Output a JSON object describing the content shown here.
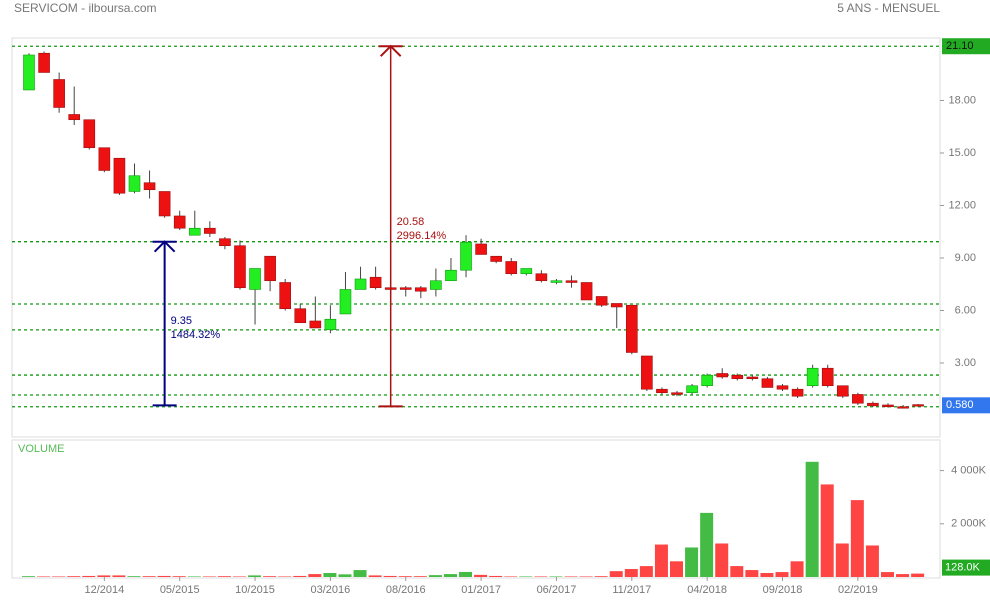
{
  "chart_data": {
    "type": "candlestick",
    "title": "SERVICOM - ilboursa.com",
    "subtitle": "5 ANS - MENSUEL",
    "categories": [
      null,
      null,
      null,
      null,
      null,
      "12/2014",
      null,
      null,
      null,
      null,
      "05/2015",
      null,
      null,
      null,
      null,
      "10/2015",
      null,
      null,
      null,
      null,
      "03/2016",
      null,
      null,
      null,
      null,
      "08/2016",
      null,
      null,
      null,
      null,
      "01/2017",
      null,
      null,
      null,
      null,
      "06/2017",
      null,
      null,
      null,
      null,
      "11/2017",
      null,
      null,
      null,
      null,
      "04/2018",
      null,
      null,
      null,
      null,
      "09/2018",
      null,
      null,
      null,
      null,
      "02/2019",
      null,
      null,
      null,
      null
    ],
    "open": [
      18.6,
      20.7,
      19.2,
      17.2,
      16.9,
      15.3,
      14.7,
      12.8,
      13.3,
      12.8,
      11.4,
      10.3,
      10.7,
      10.1,
      9.7,
      7.2,
      9.1,
      7.6,
      6.1,
      5.4,
      4.9,
      5.8,
      7.2,
      7.9,
      7.3,
      7.3,
      7.3,
      7.2,
      7.7,
      8.3,
      9.8,
      9.1,
      8.8,
      8.1,
      8.1,
      7.6,
      7.7,
      7.6,
      6.8,
      6.4,
      6.3,
      3.4,
      1.5,
      1.3,
      1.3,
      1.7,
      2.4,
      2.3,
      2.2,
      2.1,
      1.7,
      1.5,
      1.7,
      2.7,
      1.7,
      1.2,
      0.7,
      0.6,
      0.5,
      0.62
    ],
    "high": [
      20.7,
      20.8,
      19.6,
      18.8,
      16.9,
      15.3,
      14.7,
      14.4,
      14.0,
      12.8,
      11.7,
      11.7,
      11.1,
      10.2,
      10.0,
      8.4,
      9.1,
      7.8,
      6.4,
      6.8,
      6.3,
      8.2,
      8.5,
      8.5,
      7.4,
      7.4,
      7.4,
      8.4,
      9.0,
      10.3,
      10.1,
      9.1,
      9.0,
      8.4,
      8.3,
      7.8,
      8.0,
      7.6,
      6.8,
      6.4,
      6.3,
      3.4,
      1.6,
      1.4,
      1.8,
      2.4,
      2.7,
      2.4,
      2.3,
      2.2,
      1.8,
      1.6,
      2.9,
      2.9,
      1.7,
      1.3,
      0.8,
      0.7,
      0.6,
      0.65
    ],
    "low": [
      18.6,
      19.6,
      17.3,
      16.6,
      15.2,
      13.9,
      12.6,
      12.7,
      12.4,
      11.3,
      10.6,
      10.3,
      10.2,
      9.5,
      7.2,
      5.2,
      7.1,
      6.0,
      5.3,
      5.0,
      4.7,
      5.8,
      7.2,
      7.2,
      6.8,
      6.8,
      6.7,
      6.8,
      7.7,
      7.9,
      9.2,
      8.7,
      8.0,
      8.0,
      7.6,
      7.5,
      7.3,
      6.6,
      6.2,
      5.0,
      3.5,
      1.4,
      1.2,
      1.1,
      1.2,
      1.6,
      2.1,
      2.0,
      2.0,
      1.6,
      1.4,
      1.0,
      1.6,
      1.6,
      1.0,
      0.6,
      0.5,
      0.45,
      0.4,
      0.5
    ],
    "close": [
      20.6,
      19.6,
      17.6,
      16.9,
      15.3,
      14.0,
      12.7,
      13.7,
      12.9,
      11.4,
      10.7,
      10.7,
      10.4,
      9.7,
      7.3,
      8.4,
      7.7,
      6.1,
      5.3,
      5.0,
      5.5,
      7.2,
      7.8,
      7.3,
      7.2,
      7.2,
      7.1,
      7.7,
      8.3,
      9.9,
      9.2,
      8.8,
      8.1,
      8.4,
      7.7,
      7.7,
      7.6,
      6.6,
      6.3,
      6.2,
      3.6,
      1.5,
      1.3,
      1.2,
      1.7,
      2.3,
      2.2,
      2.1,
      2.1,
      1.6,
      1.5,
      1.1,
      2.7,
      1.7,
      1.1,
      0.7,
      0.55,
      0.5,
      0.45,
      0.58
    ],
    "up_color": "#22ee22",
    "down_color": "#ee1111",
    "ylim": [
      -1.23,
      21.57
    ],
    "yticks": [
      {
        "value": 3,
        "label": "3.00"
      },
      {
        "value": 6,
        "label": "6.00"
      },
      {
        "value": 9,
        "label": "9.00"
      },
      {
        "value": 12,
        "label": "12.00"
      },
      {
        "value": 15,
        "label": "15.00"
      },
      {
        "value": 18,
        "label": "18.00"
      }
    ],
    "levels": [
      {
        "value": 21.1,
        "label": "21.10"
      },
      9.93,
      6.37,
      4.89,
      2.31,
      1.17,
      0.5
    ],
    "last_close_label": {
      "value": 0.58,
      "label": "0.580"
    },
    "annotations": [
      {
        "index": 9,
        "from": 0.58,
        "to": 9.93,
        "labels": [
          "9.35",
          "1484.32%"
        ],
        "color": "#000080"
      },
      {
        "index": 24,
        "from": 0.52,
        "to": 21.1,
        "labels": [
          "20.58",
          "2996.14%"
        ],
        "color": "#aa1111"
      }
    ],
    "volume": {
      "label": "VOLUME",
      "values": [
        30,
        20,
        20,
        30,
        40,
        60,
        60,
        30,
        30,
        40,
        30,
        20,
        20,
        30,
        20,
        60,
        30,
        20,
        40,
        110,
        150,
        100,
        260,
        60,
        40,
        30,
        30,
        70,
        110,
        190,
        80,
        40,
        20,
        20,
        20,
        20,
        20,
        20,
        30,
        220,
        300,
        410,
        1220,
        590,
        1110,
        2410,
        1260,
        410,
        260,
        150,
        185,
        590,
        4330,
        3480,
        1260,
        2890,
        1185,
        185,
        110,
        128
      ],
      "up_color": "#44bb44",
      "down_color": "#ff4444",
      "ylim": [
        0,
        5150
      ],
      "yticks": [
        {
          "value": 2000,
          "label": "2 000K"
        },
        {
          "value": 4000,
          "label": "4 000K"
        }
      ],
      "last_label": {
        "value": 128,
        "label": "128.0K"
      }
    }
  }
}
